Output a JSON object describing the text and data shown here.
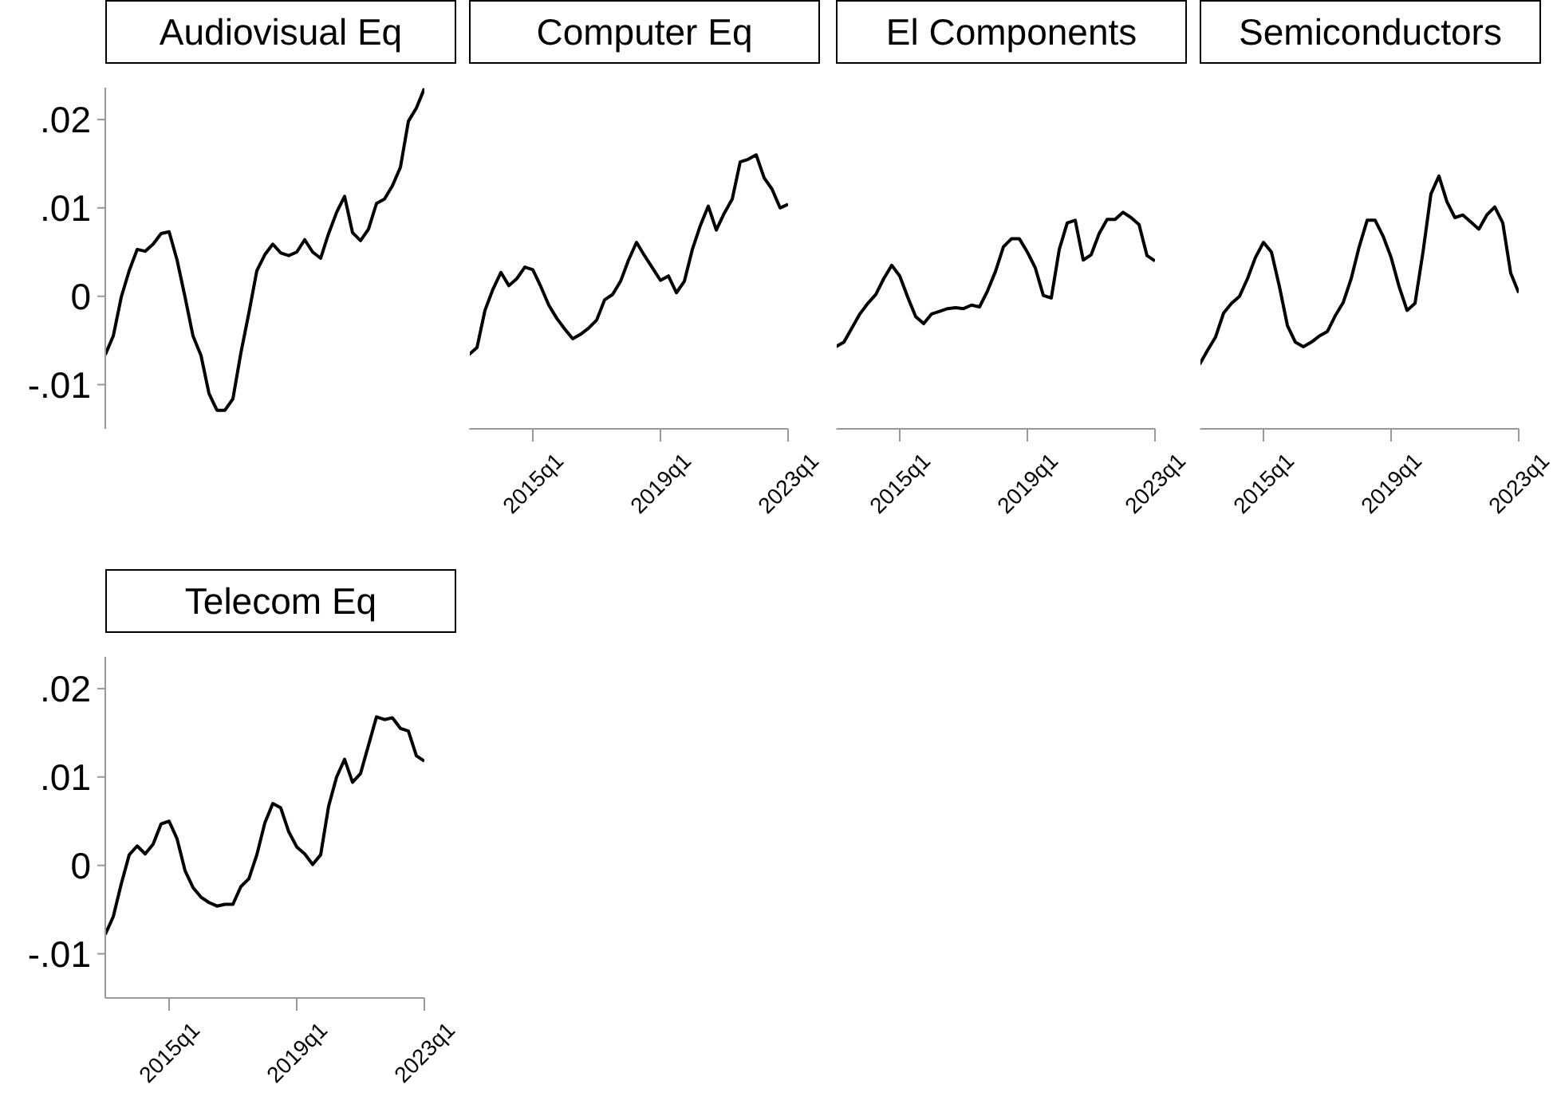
{
  "chart_data": [
    {
      "type": "line",
      "title": "Audiovisual Eq",
      "color": "#000000",
      "tick_labels": "y",
      "categories": [
        null,
        null,
        null,
        null,
        null,
        null,
        null,
        null,
        null,
        null,
        null,
        null,
        null,
        null,
        null,
        null,
        null,
        null,
        null,
        null,
        null,
        null,
        null,
        null,
        null,
        null,
        null,
        null,
        null,
        null,
        null,
        null,
        null,
        null,
        null,
        null,
        null,
        null,
        null,
        null,
        null
      ],
      "values": [
        -0.0066,
        -0.0045,
        -0.0001,
        0.0029,
        0.0053,
        0.0051,
        0.0059,
        0.0071,
        0.0073,
        0.0041,
        -0.0001,
        -0.0045,
        -0.0067,
        -0.011,
        -0.0129,
        -0.0129,
        -0.0116,
        -0.0064,
        -0.0019,
        0.0029,
        0.0047,
        0.0059,
        0.0049,
        0.0046,
        0.005,
        0.0064,
        0.005,
        0.0043,
        0.0071,
        0.0095,
        0.0113,
        0.0072,
        0.0063,
        0.0076,
        0.0105,
        0.011,
        0.0125,
        0.0146,
        0.0198,
        0.0213,
        0.0235
      ],
      "ylim": [
        -0.015,
        0.0236
      ],
      "yticks": [
        {
          "value": -0.01,
          "label": "-.01"
        },
        0,
        {
          "value": 0.01,
          "label": ".01"
        },
        {
          "value": 0.02,
          "label": ".02"
        }
      ]
    },
    {
      "type": "line",
      "title": "Computer Eq",
      "color": "#000000",
      "tick_labels": "x",
      "categories": [
        null,
        null,
        null,
        null,
        null,
        null,
        null,
        null,
        "2015q1",
        null,
        null,
        null,
        null,
        null,
        null,
        null,
        null,
        null,
        null,
        null,
        null,
        null,
        null,
        null,
        "2019q1",
        null,
        null,
        null,
        null,
        null,
        null,
        null,
        null,
        null,
        null,
        null,
        null,
        null,
        null,
        null,
        "2023q1"
      ],
      "values": [
        -0.0066,
        -0.0058,
        -0.0016,
        0.0008,
        0.0027,
        0.0012,
        0.002,
        0.0033,
        0.003,
        0.0011,
        -0.001,
        -0.0025,
        -0.0037,
        -0.0048,
        -0.0043,
        -0.0036,
        -0.0027,
        -0.0004,
        0.0002,
        0.0017,
        0.0041,
        0.0061,
        0.0046,
        0.0032,
        0.0018,
        0.0023,
        0.0004,
        0.0017,
        0.0053,
        0.008,
        0.0102,
        0.0075,
        0.0094,
        0.011,
        0.0152,
        0.0155,
        0.016,
        0.0134,
        0.0121,
        0.01,
        0.0104
      ],
      "ylim": [
        -0.015,
        0.0236
      ],
      "yticks": [
        {
          "value": -0.01,
          "label": null
        },
        {
          "value": 0,
          "label": null
        },
        {
          "value": 0.01,
          "label": null
        },
        {
          "value": 0.02,
          "label": null
        }
      ]
    },
    {
      "type": "line",
      "title": "El Components",
      "color": "#000000",
      "tick_labels": "x",
      "categories": [
        null,
        null,
        null,
        null,
        null,
        null,
        null,
        null,
        "2015q1",
        null,
        null,
        null,
        null,
        null,
        null,
        null,
        null,
        null,
        null,
        null,
        null,
        null,
        null,
        null,
        "2019q1",
        null,
        null,
        null,
        null,
        null,
        null,
        null,
        null,
        null,
        null,
        null,
        null,
        null,
        null,
        null,
        "2023q1"
      ],
      "values": [
        -0.0057,
        -0.0052,
        -0.0036,
        -0.002,
        -0.0008,
        0.0002,
        0.002,
        0.0035,
        0.0023,
        -0.0001,
        -0.0023,
        -0.0031,
        -0.002,
        -0.0017,
        -0.0014,
        -0.0013,
        -0.0014,
        -0.001,
        -0.0012,
        0.0006,
        0.0028,
        0.0056,
        0.0065,
        0.0065,
        0.005,
        0.0032,
        0.0001,
        -0.0002,
        0.0053,
        0.0083,
        0.0086,
        0.0041,
        0.0047,
        0.0071,
        0.0087,
        0.0087,
        0.0095,
        0.0089,
        0.0081,
        0.0046,
        0.004
      ],
      "ylim": [
        -0.015,
        0.0236
      ],
      "yticks": [
        {
          "value": -0.01,
          "label": null
        },
        {
          "value": 0,
          "label": null
        },
        {
          "value": 0.01,
          "label": null
        },
        {
          "value": 0.02,
          "label": null
        }
      ]
    },
    {
      "type": "line",
      "title": "Semiconductors",
      "color": "#000000",
      "tick_labels": "x",
      "categories": [
        null,
        null,
        null,
        null,
        null,
        null,
        null,
        null,
        "2015q1",
        null,
        null,
        null,
        null,
        null,
        null,
        null,
        null,
        null,
        null,
        null,
        null,
        null,
        null,
        null,
        "2019q1",
        null,
        null,
        null,
        null,
        null,
        null,
        null,
        null,
        null,
        null,
        null,
        null,
        null,
        null,
        null,
        "2023q1"
      ],
      "values": [
        -0.0077,
        -0.0061,
        -0.0046,
        -0.0019,
        -0.0008,
        0,
        0.002,
        0.0044,
        0.0061,
        0.005,
        0.0011,
        -0.0033,
        -0.0052,
        -0.0057,
        -0.0052,
        -0.0045,
        -0.004,
        -0.0022,
        -0.0007,
        0.002,
        0.0056,
        0.0086,
        0.0086,
        0.0068,
        0.0044,
        0.0011,
        -0.0016,
        -0.0008,
        0.005,
        0.0116,
        0.0136,
        0.0107,
        0.0089,
        0.0092,
        0.0084,
        0.0076,
        0.0092,
        0.0101,
        0.0083,
        0.0026,
        0.0004
      ],
      "ylim": [
        -0.015,
        0.0236
      ],
      "yticks": [
        {
          "value": -0.01,
          "label": null
        },
        {
          "value": 0,
          "label": null
        },
        {
          "value": 0.01,
          "label": null
        },
        {
          "value": 0.02,
          "label": null
        }
      ]
    },
    {
      "type": "line",
      "title": "Telecom Eq",
      "color": "#000000",
      "categories": [
        null,
        null,
        null,
        null,
        null,
        null,
        null,
        null,
        "2015q1",
        null,
        null,
        null,
        null,
        null,
        null,
        null,
        null,
        null,
        null,
        null,
        null,
        null,
        null,
        null,
        "2019q1",
        null,
        null,
        null,
        null,
        null,
        null,
        null,
        null,
        null,
        null,
        null,
        null,
        null,
        null,
        null,
        "2023q1"
      ],
      "values": [
        -0.0078,
        -0.0058,
        -0.0021,
        0.0012,
        0.0022,
        0.0013,
        0.0024,
        0.0047,
        0.005,
        0.003,
        -0.0006,
        -0.0025,
        -0.0036,
        -0.0042,
        -0.0046,
        -0.0044,
        -0.0044,
        -0.0024,
        -0.0015,
        0.0012,
        0.0048,
        0.007,
        0.0065,
        0.0038,
        0.0021,
        0.0013,
        0.0001,
        0.0012,
        0.0067,
        0.01,
        0.012,
        0.0094,
        0.0104,
        0.0136,
        0.0168,
        0.0165,
        0.0167,
        0.0155,
        0.0152,
        0.0124,
        0.0118
      ],
      "ylim": [
        -0.015,
        0.0236
      ],
      "yticks": [
        {
          "value": -0.01,
          "label": "-.01"
        },
        0,
        {
          "value": 0.01,
          "label": ".01"
        },
        {
          "value": 0.02,
          "label": ".02"
        }
      ]
    }
  ]
}
